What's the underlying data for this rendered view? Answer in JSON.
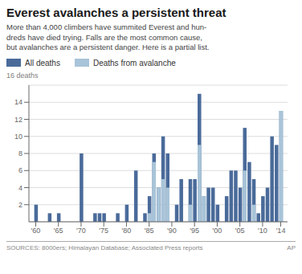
{
  "chart_data": {
    "type": "bar",
    "title": "Everest avalanches a persistent threat",
    "subtitle": "More than 4,000 climbers have summited Everest and hun-\ndreds have died trying. Falls are the most common cause,\nbut avalanches are a persistent danger. Here is a partial list.",
    "ylabel": "16 deaths",
    "source": "SOURCES: 8000ers; Himalayan Database; Associated Press reports",
    "credit": "AP",
    "x": [
      1960,
      1961,
      1962,
      1963,
      1964,
      1965,
      1966,
      1967,
      1968,
      1969,
      1970,
      1971,
      1972,
      1973,
      1974,
      1975,
      1976,
      1977,
      1978,
      1979,
      1980,
      1981,
      1982,
      1983,
      1984,
      1985,
      1986,
      1987,
      1988,
      1989,
      1990,
      1991,
      1992,
      1993,
      1994,
      1995,
      1996,
      1997,
      1998,
      1999,
      2000,
      2001,
      2002,
      2003,
      2004,
      2005,
      2006,
      2007,
      2008,
      2009,
      2010,
      2011,
      2012,
      2013,
      2014
    ],
    "series": [
      {
        "name": "All deaths",
        "color": "#4a6b9a",
        "values": [
          2,
          0,
          0,
          1,
          0,
          1,
          0,
          0,
          0,
          0,
          8,
          0,
          0,
          1,
          1,
          1,
          0,
          0,
          1,
          0,
          2,
          0,
          6,
          0,
          1,
          3,
          8,
          4,
          10,
          8,
          0,
          2,
          5,
          0,
          5,
          5,
          15,
          3,
          4,
          4,
          2,
          0,
          3,
          6,
          6,
          4,
          11,
          7,
          5,
          1,
          3,
          4,
          10,
          9,
          13
        ]
      },
      {
        "name": "Deaths from avalanche",
        "color": "#a8c4d8",
        "values": [
          0,
          0,
          0,
          0,
          0,
          0,
          0,
          0,
          0,
          0,
          0,
          0,
          0,
          0,
          0,
          0,
          0,
          0,
          0,
          0,
          0,
          0,
          0,
          0,
          0,
          1,
          7,
          4,
          5,
          4,
          0,
          0,
          0,
          0,
          2,
          0,
          9,
          3,
          0,
          0,
          0,
          0,
          0,
          0,
          0,
          0,
          6,
          0,
          2,
          0,
          0,
          0,
          0,
          0,
          13
        ]
      }
    ],
    "xlim": [
      1958.5,
      2015.5
    ],
    "xticks": [
      {
        "value": 1960,
        "label": "'60"
      },
      {
        "value": 1965,
        "label": "'65"
      },
      {
        "value": 1970,
        "label": "'70"
      },
      {
        "value": 1975,
        "label": "'75"
      },
      {
        "value": 1980,
        "label": "'80"
      },
      {
        "value": 1985,
        "label": "'85"
      },
      {
        "value": 1990,
        "label": "'90"
      },
      {
        "value": 1995,
        "label": "'95"
      },
      {
        "value": 2000,
        "label": "'00"
      },
      {
        "value": 2005,
        "label": "'05"
      },
      {
        "value": 2010,
        "label": "'10"
      },
      {
        "value": 2014,
        "label": "'14"
      }
    ],
    "ylim": [
      0,
      16
    ],
    "yticks": [
      2,
      4,
      6,
      8,
      10,
      12,
      14
    ],
    "grid": true,
    "legend": "top"
  }
}
